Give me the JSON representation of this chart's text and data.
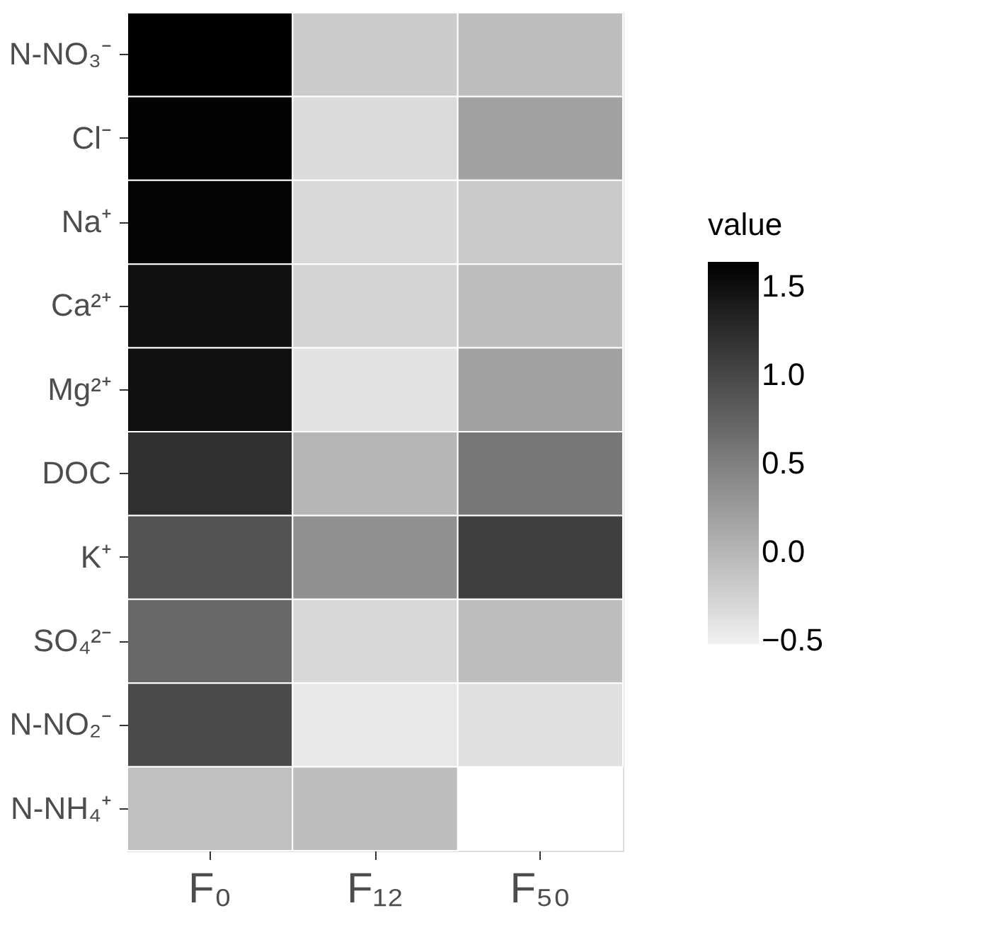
{
  "chart_data": {
    "type": "heatmap",
    "legend_title": "value",
    "categories": [
      "F₀",
      "F₁₂",
      "F₅₀"
    ],
    "y_categories": [
      "N-NO₃⁻",
      "Cl⁻",
      "Na⁺",
      "Ca²⁺",
      "Mg²⁺",
      "DOC",
      "K⁺",
      "SO₄²⁻",
      "N-NO₂⁻",
      "N-NH₄⁺"
    ],
    "cells": [
      [
        1.64,
        -0.2,
        -0.07
      ],
      [
        1.62,
        -0.33,
        0.18
      ],
      [
        1.6,
        -0.31,
        -0.18
      ],
      [
        1.49,
        -0.27,
        -0.07
      ],
      [
        1.5,
        -0.39,
        0.19
      ],
      [
        1.21,
        0.0,
        0.57
      ],
      [
        0.89,
        0.34,
        1.07
      ],
      [
        0.7,
        -0.3,
        -0.07
      ],
      [
        0.97,
        -0.45,
        -0.38
      ],
      [
        -0.09,
        -0.07,
        null
      ]
    ],
    "clim": [
      -0.52,
      1.64
    ],
    "cticks": [
      {
        "value": -0.5,
        "label": "−0.5"
      },
      {
        "value": 0,
        "label": "0.0"
      },
      {
        "value": 0.5,
        "label": "0.5"
      },
      {
        "value": 1,
        "label": "1.0"
      },
      {
        "value": 1.5,
        "label": "1.5"
      }
    ],
    "colors": [
      "#f0f0f0",
      "#000000"
    ]
  }
}
